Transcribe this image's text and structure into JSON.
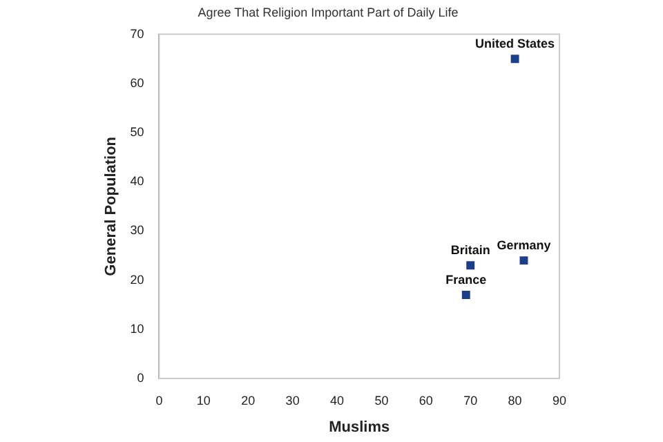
{
  "chart_data": {
    "type": "scatter",
    "title": "Agree That Religion Important Part of Daily Life",
    "xlabel": "Muslims",
    "ylabel": "General Population",
    "x": [
      80,
      70,
      82,
      69
    ],
    "values": [
      65,
      23,
      24,
      17
    ],
    "color": "#1c3f8c",
    "marker": "square",
    "annotations": [
      {
        "text": "United States",
        "x": 80,
        "y": 65
      },
      {
        "text": "Britain",
        "x": 70,
        "y": 23
      },
      {
        "text": "Germany",
        "x": 82,
        "y": 24
      },
      {
        "text": "France",
        "x": 69,
        "y": 17
      }
    ],
    "xlim": [
      0,
      90
    ],
    "xticks": [
      0,
      10,
      20,
      30,
      40,
      50,
      60,
      70,
      80,
      90
    ],
    "ylim": [
      0,
      70
    ],
    "yticks": [
      0,
      10,
      20,
      30,
      40,
      50,
      60,
      70
    ],
    "grid": false,
    "legend": false
  }
}
